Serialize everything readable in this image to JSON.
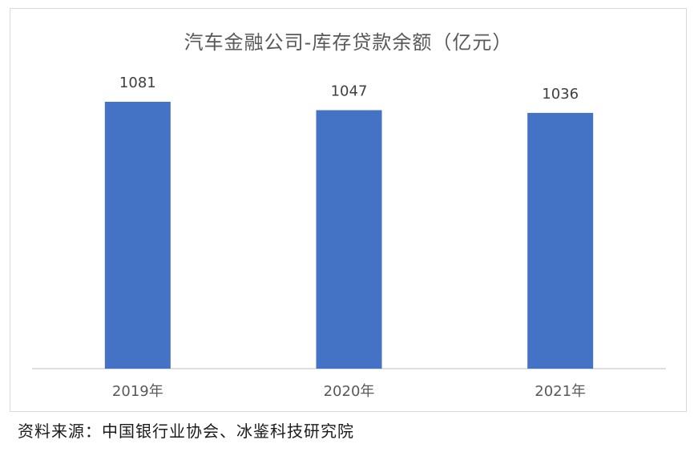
{
  "chart_data": {
    "type": "bar",
    "title": "汽车金融公司-库存贷款余额（亿元）",
    "categories": [
      "2019年",
      "2020年",
      "2021年"
    ],
    "values": [
      1081,
      1047,
      1036
    ],
    "data_labels": [
      "1081",
      "1047",
      "1036"
    ],
    "xlabel": "",
    "ylabel": "",
    "grid": false,
    "legend": "none",
    "bar_color": "#4472C4",
    "axis_color": "#bfbfbf",
    "label_color": "#404040"
  },
  "footer": {
    "source": "资料来源：中国银行业协会、冰鉴科技研究院"
  }
}
